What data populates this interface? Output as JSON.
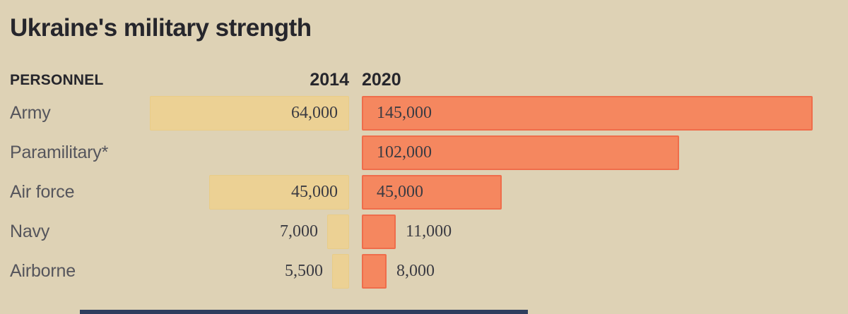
{
  "title": "Ukraine's military strength",
  "header": {
    "personnel": "PERSONNEL",
    "col_2014": "2014",
    "col_2020": "2020"
  },
  "chart_data": {
    "type": "bar",
    "orientation": "horizontal",
    "title": "Ukraine's military strength",
    "categories": [
      "Army",
      "Paramilitary*",
      "Air force",
      "Navy",
      "Airborne"
    ],
    "series": [
      {
        "name": "2014",
        "color": "#ecd194",
        "values": [
          64000,
          null,
          45000,
          7000,
          5500
        ],
        "labels": [
          "64,000",
          "",
          "45,000",
          "7,000",
          "5,500"
        ]
      },
      {
        "name": "2020",
        "color": "#f5875f",
        "values": [
          145000,
          102000,
          45000,
          11000,
          8000
        ],
        "labels": [
          "145,000",
          "102,000",
          "45,000",
          "11,000",
          "8,000"
        ]
      }
    ],
    "value_axis_max": 145000,
    "grid": false,
    "legend_position": "column-headers-top"
  },
  "colors": {
    "bg": "#ded2b5",
    "ink": "#26262c",
    "label": "#55555c",
    "value": "#3b3b42",
    "tan": "#ecd194",
    "tan_border": "#e9cc87",
    "orange": "#f5875f",
    "orange_border": "#ef6d4b",
    "navy": "#2e3e5e"
  }
}
